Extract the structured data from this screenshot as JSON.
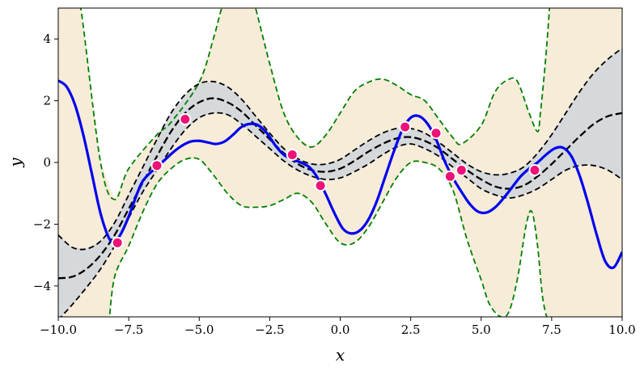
{
  "chart_data": {
    "type": "line",
    "title": "",
    "xlabel": "x",
    "ylabel": "y",
    "xlim": [
      -10.0,
      10.0
    ],
    "ylim": [
      -5.0,
      5.0
    ],
    "grid": false,
    "x_ticks": [
      -10.0,
      -7.5,
      -5.0,
      -2.5,
      0.0,
      2.5,
      5.0,
      7.5,
      10.0
    ],
    "x_tick_labels": [
      "−10.0",
      "−7.5",
      "−5.0",
      "−2.5",
      "0.0",
      "2.5",
      "5.0",
      "7.5",
      "10.0"
    ],
    "y_ticks": [
      -4,
      -2,
      0,
      2,
      4
    ],
    "y_tick_labels": [
      "−4",
      "−2",
      "0",
      "2",
      "4"
    ],
    "colors": {
      "true_function": "#0000ee",
      "wide_band_fill": "#f7ecd8",
      "narrow_band_fill": "#d5d9dc",
      "wide_band_edge": "#008000",
      "narrow_band_edge": "#000000",
      "points": "#ee1177"
    },
    "series": [
      {
        "role": "wide-band-upper",
        "style": "dashed",
        "x": [
          -10,
          -9.5,
          -9.2,
          -8.5,
          -8,
          -7.5,
          -6.5,
          -6,
          -5,
          -4.5,
          -4.2,
          -3.8,
          -3.3,
          -3.0,
          -2.5,
          -2,
          -1.5,
          -1,
          -0.5,
          0,
          0.5,
          1,
          1.5,
          2,
          2.5,
          3,
          3.5,
          4,
          4.3,
          5,
          5.5,
          6,
          6.3,
          6.7,
          7.0,
          7.1,
          7.3,
          7.5
        ],
        "y": [
          6.0,
          6.0,
          5.0,
          0.0,
          -1.2,
          -0.2,
          0.9,
          1.3,
          2.6,
          4.0,
          5.0,
          6.0,
          6.0,
          5.0,
          3.2,
          1.6,
          0.8,
          0.5,
          0.9,
          1.6,
          2.3,
          2.6,
          2.7,
          2.5,
          2.2,
          2.0,
          1.4,
          0.8,
          0.6,
          1.2,
          2.3,
          2.7,
          2.6,
          1.6,
          1.0,
          1.6,
          3.5,
          6.0
        ]
      },
      {
        "role": "wide-band-lower",
        "style": "dashed",
        "x": [
          -8.2,
          -8.0,
          -7.5,
          -7.0,
          -6.5,
          -6.0,
          -5.5,
          -5.0,
          -4.5,
          -4.0,
          -3.5,
          -3.0,
          -2.5,
          -2.0,
          -1.5,
          -1.0,
          -0.5,
          0,
          0.5,
          1.0,
          1.5,
          2.0,
          2.5,
          3.0,
          3.5,
          4.0,
          4.5,
          5.0,
          5.3,
          5.7,
          6.0,
          6.3,
          6.6,
          6.8,
          7.0,
          7.2,
          7.5
        ],
        "y": [
          -5.2,
          -3.7,
          -2.7,
          -1.6,
          -0.7,
          -0.2,
          0.1,
          0.1,
          -0.4,
          -1.0,
          -1.4,
          -1.45,
          -1.4,
          -1.2,
          -1.0,
          -1.3,
          -2.0,
          -2.6,
          -2.6,
          -2.1,
          -1.3,
          -0.5,
          0.0,
          0.0,
          -0.2,
          -0.9,
          -2.5,
          -3.8,
          -4.6,
          -5.0,
          -4.8,
          -3.7,
          -2.0,
          -1.6,
          -2.7,
          -4.5,
          -5.5
        ]
      },
      {
        "role": "narrow-band-upper",
        "style": "dashed",
        "x": [
          -10.0,
          -9.5,
          -9.0,
          -8.5,
          -8.0,
          -7.5,
          -7.0,
          -6.5,
          -6.0,
          -5.5,
          -5.0,
          -4.5,
          -4.0,
          -3.5,
          -3.0,
          -2.5,
          -2.0,
          -1.5,
          -1.0,
          -0.5,
          0.0,
          0.5,
          1.0,
          1.5,
          2.0,
          2.5,
          3.0,
          3.5,
          4.0,
          4.5,
          5.0,
          5.5,
          6.0,
          6.5,
          7.0,
          7.5,
          8.0,
          8.5,
          9.0,
          9.5,
          10.0
        ],
        "y": [
          -2.35,
          -2.75,
          -2.8,
          -2.55,
          -1.95,
          -1.05,
          -0.15,
          0.75,
          1.6,
          2.2,
          2.55,
          2.62,
          2.45,
          2.05,
          1.5,
          0.95,
          0.45,
          0.12,
          -0.05,
          -0.05,
          0.1,
          0.4,
          0.7,
          0.95,
          1.1,
          1.1,
          0.95,
          0.65,
          0.3,
          -0.05,
          -0.3,
          -0.4,
          -0.35,
          -0.15,
          0.3,
          0.9,
          1.6,
          2.3,
          2.9,
          3.35,
          3.7
        ]
      },
      {
        "role": "mean",
        "style": "dashed",
        "x": [
          -10.0,
          -9.5,
          -9.0,
          -8.5,
          -8.0,
          -7.5,
          -7.0,
          -6.5,
          -6.0,
          -5.5,
          -5.0,
          -4.5,
          -4.0,
          -3.5,
          -3.0,
          -2.5,
          -2.0,
          -1.5,
          -1.0,
          -0.5,
          0.0,
          0.5,
          1.0,
          1.5,
          2.0,
          2.5,
          3.0,
          3.5,
          4.0,
          4.5,
          5.0,
          5.5,
          6.0,
          6.5,
          7.0,
          7.5,
          8.0,
          8.5,
          9.0,
          9.5,
          10.0
        ],
        "y": [
          -3.75,
          -3.7,
          -3.45,
          -3.0,
          -2.35,
          -1.5,
          -0.65,
          0.2,
          1.0,
          1.6,
          1.95,
          2.08,
          1.95,
          1.65,
          1.2,
          0.75,
          0.3,
          -0.05,
          -0.25,
          -0.3,
          -0.2,
          0.05,
          0.35,
          0.6,
          0.78,
          0.82,
          0.7,
          0.45,
          0.1,
          -0.25,
          -0.55,
          -0.78,
          -0.85,
          -0.75,
          -0.45,
          -0.05,
          0.4,
          0.85,
          1.25,
          1.5,
          1.6
        ]
      },
      {
        "role": "narrow-band-lower",
        "style": "dashed",
        "x": [
          -10.0,
          -9.5,
          -9.0,
          -8.5,
          -8.0,
          -7.5,
          -7.0,
          -6.5,
          -6.0,
          -5.5,
          -5.0,
          -4.5,
          -4.0,
          -3.5,
          -3.0,
          -2.5,
          -2.0,
          -1.5,
          -1.0,
          -0.5,
          0.0,
          0.5,
          1.0,
          1.5,
          2.0,
          2.5,
          3.0,
          3.5,
          4.0,
          4.5,
          5.0,
          5.5,
          6.0,
          6.5,
          7.0,
          7.5,
          8.0,
          8.5,
          9.0,
          9.5,
          10.0
        ],
        "y": [
          -5.1,
          -4.6,
          -4.05,
          -3.45,
          -2.7,
          -1.8,
          -0.95,
          -0.25,
          0.45,
          1.05,
          1.45,
          1.6,
          1.55,
          1.25,
          0.85,
          0.45,
          0.05,
          -0.25,
          -0.45,
          -0.55,
          -0.5,
          -0.3,
          -0.05,
          0.25,
          0.5,
          0.6,
          0.45,
          0.2,
          -0.15,
          -0.5,
          -0.85,
          -1.05,
          -1.15,
          -1.05,
          -0.85,
          -0.55,
          -0.25,
          -0.1,
          -0.1,
          -0.25,
          -0.55
        ]
      },
      {
        "role": "true-function",
        "style": "solid",
        "x": [
          -10.0,
          -9.7,
          -9.4,
          -9.1,
          -8.8,
          -8.5,
          -8.2,
          -8.0,
          -7.8,
          -7.5,
          -7.2,
          -7.0,
          -6.7,
          -6.5,
          -6.2,
          -5.9,
          -5.6,
          -5.3,
          -5.0,
          -4.7,
          -4.4,
          -4.1,
          -3.8,
          -3.5,
          -3.2,
          -2.9,
          -2.6,
          -2.3,
          -2.0,
          -1.7,
          -1.4,
          -1.1,
          -0.8,
          -0.5,
          -0.2,
          0.1,
          0.4,
          0.7,
          1.0,
          1.3,
          1.6,
          1.9,
          2.2,
          2.5,
          2.8,
          3.1,
          3.4,
          3.7,
          4.0,
          4.3,
          4.6,
          4.9,
          5.2,
          5.5,
          5.8,
          6.1,
          6.4,
          6.7,
          7.0,
          7.3,
          7.6,
          7.9,
          8.2,
          8.5,
          8.8,
          9.1,
          9.4,
          9.7,
          10.0
        ],
        "y": [
          2.65,
          2.45,
          1.85,
          0.85,
          -0.4,
          -1.65,
          -2.45,
          -2.55,
          -2.35,
          -1.75,
          -1.0,
          -0.6,
          -0.3,
          -0.15,
          0.1,
          0.35,
          0.55,
          0.68,
          0.7,
          0.65,
          0.6,
          0.68,
          0.9,
          1.15,
          1.25,
          1.2,
          0.95,
          0.55,
          0.25,
          0.1,
          0.0,
          -0.15,
          -0.5,
          -1.05,
          -1.65,
          -2.15,
          -2.3,
          -2.2,
          -1.85,
          -1.25,
          -0.45,
          0.35,
          1.05,
          1.45,
          1.5,
          1.25,
          0.75,
          0.05,
          -0.5,
          -0.95,
          -1.35,
          -1.6,
          -1.62,
          -1.45,
          -1.15,
          -0.8,
          -0.45,
          -0.2,
          0.0,
          0.25,
          0.45,
          0.48,
          0.2,
          -0.45,
          -1.35,
          -2.35,
          -3.2,
          -3.4,
          -2.9
        ]
      }
    ],
    "points": {
      "x": [
        -7.9,
        -6.5,
        -5.5,
        -1.7,
        -0.7,
        2.3,
        3.4,
        3.9,
        4.3,
        6.9
      ],
      "y": [
        -2.6,
        -0.1,
        1.4,
        0.25,
        -0.75,
        1.15,
        0.95,
        -0.45,
        -0.25,
        -0.25
      ]
    }
  }
}
